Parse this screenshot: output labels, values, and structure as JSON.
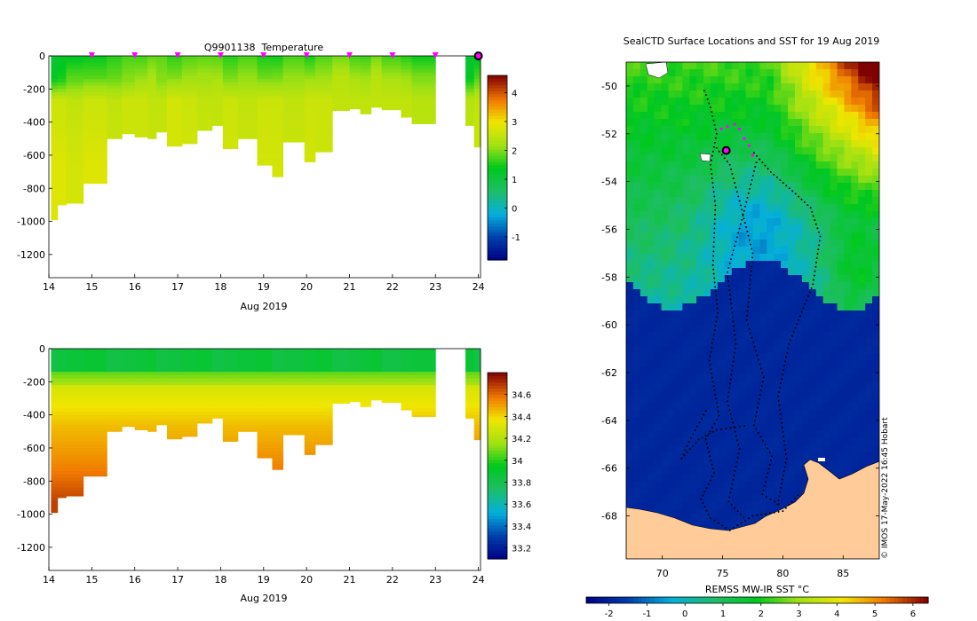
{
  "figure": {
    "credit": "© IMOS 17-May-2022 16:45 Hobart"
  },
  "chart_data": [
    {
      "type": "heatmap",
      "name": "temperature-section",
      "title": "Q9901138  Temperature",
      "xlabel": "Aug 2019",
      "ylabel": "",
      "xlim": [
        14,
        24.05
      ],
      "ylim": [
        -1340,
        0
      ],
      "xticks": [
        "14",
        "15",
        "16",
        "17",
        "18",
        "19",
        "20",
        "21",
        "22",
        "23",
        "24"
      ],
      "yticks": [
        "0",
        "-200",
        "-400",
        "-600",
        "-800",
        "-1000",
        "-1200"
      ],
      "colorbar": {
        "min": -1.8,
        "max": 4.6,
        "ticks": [
          "-1",
          "0",
          "1",
          "2",
          "3",
          "4"
        ]
      },
      "profile_markers_x": [
        15,
        16,
        17,
        18,
        19,
        20,
        21,
        22,
        23
      ],
      "highlight_x": 24,
      "profiles": [
        {
          "x0": 14.05,
          "x1": 14.2,
          "depth": 990,
          "v": [
            1.2,
            1.4,
            2.6,
            2.8
          ]
        },
        {
          "x0": 14.2,
          "x1": 14.4,
          "depth": 900,
          "v": [
            1.3,
            1.5,
            2.6,
            2.8
          ]
        },
        {
          "x0": 14.4,
          "x1": 14.8,
          "depth": 890,
          "v": [
            1.3,
            1.8,
            2.5,
            2.7
          ]
        },
        {
          "x0": 14.8,
          "x1": 15.35,
          "depth": 770,
          "v": [
            1.5,
            1.9,
            2.6,
            2.8
          ]
        },
        {
          "x0": 15.35,
          "x1": 15.7,
          "depth": 500,
          "v": [
            1.6,
            1.9,
            2.5,
            2.6
          ]
        },
        {
          "x0": 15.7,
          "x1": 16.0,
          "depth": 470,
          "v": [
            1.7,
            2.0,
            2.6,
            2.6
          ]
        },
        {
          "x0": 16.0,
          "x1": 16.3,
          "depth": 490,
          "v": [
            1.8,
            2.2,
            2.6,
            2.6
          ]
        },
        {
          "x0": 16.3,
          "x1": 16.5,
          "depth": 500,
          "v": [
            1.9,
            2.3,
            2.5,
            2.6
          ]
        },
        {
          "x0": 16.5,
          "x1": 16.75,
          "depth": 460,
          "v": [
            1.8,
            2.0,
            2.5,
            2.6
          ]
        },
        {
          "x0": 16.75,
          "x1": 17.1,
          "depth": 545,
          "v": [
            1.7,
            2.1,
            2.7,
            2.7
          ]
        },
        {
          "x0": 17.1,
          "x1": 17.45,
          "depth": 530,
          "v": [
            1.8,
            2.2,
            2.6,
            2.7
          ]
        },
        {
          "x0": 17.45,
          "x1": 17.8,
          "depth": 450,
          "v": [
            1.8,
            2.2,
            2.5,
            2.6
          ]
        },
        {
          "x0": 17.8,
          "x1": 18.05,
          "depth": 420,
          "v": [
            1.9,
            2.3,
            2.5,
            2.5
          ]
        },
        {
          "x0": 18.05,
          "x1": 18.4,
          "depth": 560,
          "v": [
            1.6,
            2.0,
            2.6,
            2.7
          ]
        },
        {
          "x0": 18.4,
          "x1": 18.85,
          "depth": 500,
          "v": [
            1.7,
            2.1,
            2.5,
            2.6
          ]
        },
        {
          "x0": 18.85,
          "x1": 19.2,
          "depth": 660,
          "v": [
            1.6,
            2.0,
            2.6,
            2.7
          ]
        },
        {
          "x0": 19.2,
          "x1": 19.45,
          "depth": 730,
          "v": [
            1.5,
            2.0,
            2.6,
            2.7
          ]
        },
        {
          "x0": 19.45,
          "x1": 19.95,
          "depth": 520,
          "v": [
            1.7,
            2.1,
            2.5,
            2.6
          ]
        },
        {
          "x0": 19.95,
          "x1": 20.2,
          "depth": 640,
          "v": [
            1.6,
            2.2,
            2.6,
            2.7
          ]
        },
        {
          "x0": 20.2,
          "x1": 20.6,
          "depth": 580,
          "v": [
            1.8,
            2.2,
            2.6,
            2.6
          ]
        },
        {
          "x0": 20.6,
          "x1": 21.0,
          "depth": 330,
          "v": [
            1.9,
            2.4,
            2.5,
            2.5
          ]
        },
        {
          "x0": 21.0,
          "x1": 21.25,
          "depth": 320,
          "v": [
            1.8,
            2.3,
            2.5,
            2.5
          ]
        },
        {
          "x0": 21.25,
          "x1": 21.5,
          "depth": 350,
          "v": [
            1.7,
            2.2,
            2.5,
            2.5
          ]
        },
        {
          "x0": 21.5,
          "x1": 21.75,
          "depth": 310,
          "v": [
            1.9,
            2.4,
            2.5,
            2.5
          ]
        },
        {
          "x0": 21.75,
          "x1": 22.2,
          "depth": 325,
          "v": [
            1.8,
            2.3,
            2.5,
            2.5
          ]
        },
        {
          "x0": 22.2,
          "x1": 22.45,
          "depth": 370,
          "v": [
            1.6,
            2.2,
            2.5,
            2.5
          ]
        },
        {
          "x0": 22.45,
          "x1": 23.0,
          "depth": 410,
          "v": [
            1.4,
            2.0,
            2.4,
            2.5
          ]
        },
        {
          "x0": 23.7,
          "x1": 23.9,
          "depth": 420,
          "v": [
            1.2,
            1.4,
            2.4,
            2.5
          ]
        },
        {
          "x0": 23.9,
          "x1": 24.05,
          "depth": 550,
          "v": [
            1.3,
            1.8,
            2.5,
            2.6
          ]
        }
      ]
    },
    {
      "type": "heatmap",
      "name": "salinity-section",
      "title": "",
      "xlabel": "Aug 2019",
      "ylabel": "",
      "xlim": [
        14,
        24.05
      ],
      "ylim": [
        -1340,
        0
      ],
      "xticks": [
        "14",
        "15",
        "16",
        "17",
        "18",
        "19",
        "20",
        "21",
        "22",
        "23",
        "24"
      ],
      "yticks": [
        "0",
        "-200",
        "-400",
        "-600",
        "-800",
        "-1000",
        "-1200"
      ],
      "colorbar": {
        "min": 33.1,
        "max": 34.8,
        "ticks": [
          "33.2",
          "33.4",
          "33.6",
          "33.8",
          "34",
          "34.2",
          "34.4",
          "34.6"
        ]
      },
      "surface_value": 33.88,
      "thermocline_value": 34.08,
      "deep_values": [
        34.3,
        34.45,
        34.55,
        34.68
      ]
    },
    {
      "type": "heatmap",
      "name": "sst-map",
      "title": "SealCTD Surface Locations and SST for 19 Aug 2019",
      "xlabel": "",
      "ylabel": "",
      "xlim": [
        67,
        88
      ],
      "ylim": [
        -69.8,
        -49
      ],
      "xticks": [
        "70",
        "75",
        "80",
        "85"
      ],
      "yticks": [
        "-50",
        "-52",
        "-54",
        "-56",
        "-58",
        "-60",
        "-62",
        "-64",
        "-66",
        "-68"
      ],
      "colorbar": {
        "label": "REMSS MW-IR SST °C",
        "min": -2.6,
        "max": 6.4,
        "ticks": [
          "-2",
          "-1",
          "0",
          "1",
          "2",
          "3",
          "4",
          "5",
          "6"
        ]
      },
      "highlight_lonlat": [
        75.3,
        -52.7
      ],
      "recent_track_lonlat": [
        [
          74.9,
          -51.8
        ],
        [
          75.4,
          -51.7
        ],
        [
          76.0,
          -51.6
        ],
        [
          76.4,
          -51.8
        ],
        [
          76.8,
          -52.2
        ],
        [
          77.2,
          -52.5
        ],
        [
          77.5,
          -52.9
        ]
      ],
      "track_lonlat": [
        [
          [
            73.5,
            -50.2
          ],
          [
            74.0,
            -50.9
          ],
          [
            74.5,
            -52.0
          ],
          [
            74.0,
            -53.3
          ],
          [
            74.4,
            -55.0
          ],
          [
            74.2,
            -57.5
          ],
          [
            74.6,
            -59.5
          ],
          [
            73.9,
            -61.5
          ],
          [
            74.7,
            -63.8
          ],
          [
            73.6,
            -64.8
          ],
          [
            74.3,
            -66.2
          ],
          [
            73.2,
            -67.3
          ],
          [
            74.0,
            -68.1
          ],
          [
            75.6,
            -68.6
          ],
          [
            77.5,
            -68.0
          ],
          [
            80.0,
            -67.8
          ],
          [
            81.5,
            -67.0
          ]
        ],
        [
          [
            74.5,
            -52.6
          ],
          [
            75.6,
            -53.3
          ],
          [
            76.5,
            -55.0
          ],
          [
            77.5,
            -57.0
          ],
          [
            77.0,
            -59.8
          ],
          [
            78.4,
            -62.2
          ],
          [
            77.6,
            -64.2
          ],
          [
            79.1,
            -65.5
          ],
          [
            78.3,
            -67.1
          ],
          [
            80.0,
            -67.6
          ]
        ],
        [
          [
            77.6,
            -52.8
          ],
          [
            79.0,
            -53.6
          ],
          [
            80.8,
            -54.4
          ],
          [
            82.3,
            -55.1
          ],
          [
            83.1,
            -56.3
          ],
          [
            82.5,
            -58.3
          ],
          [
            80.5,
            -60.8
          ],
          [
            79.6,
            -63.0
          ],
          [
            80.3,
            -65.6
          ],
          [
            79.5,
            -67.7
          ]
        ],
        [
          [
            77.8,
            -53.2
          ],
          [
            76.6,
            -55.6
          ],
          [
            75.4,
            -57.8
          ],
          [
            76.1,
            -60.8
          ],
          [
            75.4,
            -63.2
          ],
          [
            76.4,
            -65.2
          ],
          [
            75.5,
            -67.4
          ],
          [
            77.0,
            -68.2
          ]
        ],
        [
          [
            73.6,
            -63.6
          ],
          [
            72.2,
            -64.9
          ],
          [
            71.6,
            -65.6
          ],
          [
            73.0,
            -64.8
          ],
          [
            74.5,
            -64.4
          ],
          [
            77.2,
            -64.2
          ]
        ]
      ]
    }
  ]
}
